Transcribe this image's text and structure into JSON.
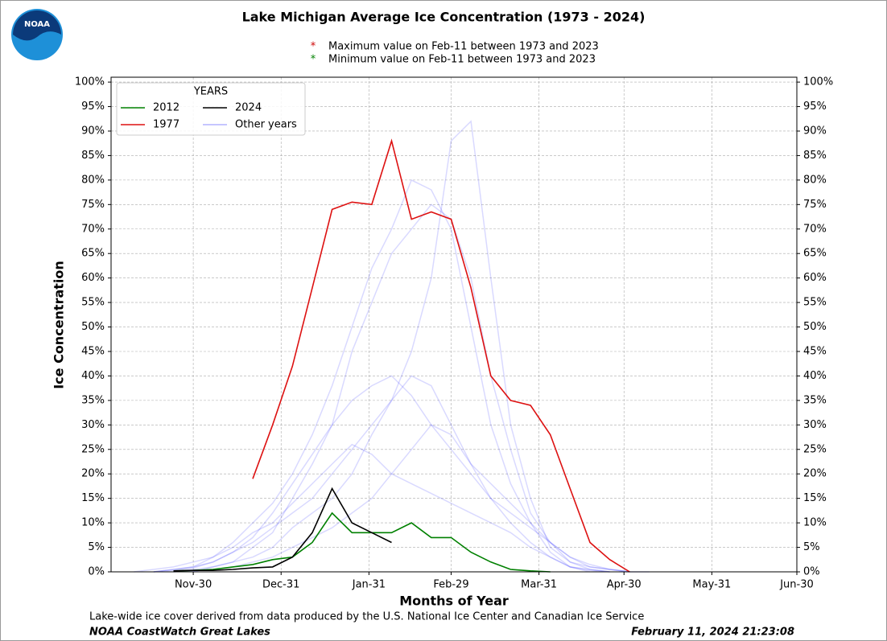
{
  "chart_data": {
    "type": "line",
    "title": "Lake Michigan Average Ice Concentration (1973 - 2024)",
    "annotations": [
      {
        "marker": "*",
        "color": "#cc0000",
        "text": "Maximum value on Feb-11 between 1973 and 2023"
      },
      {
        "marker": "*",
        "color": "#008000",
        "text": "Minimum  value on Feb-11 between 1973 and 2023"
      }
    ],
    "logo_text": "NOAA",
    "x_label": "Months of Year",
    "y_label": "Ice Concentration",
    "footnote": "Lake-wide ice cover derived from data produced by the U.S. National Ice Center and Canadian Ice Service",
    "footer_left": "NOAA CoastWatch Great Lakes",
    "footer_right": "February 11, 2024 21:23:08",
    "legend_title": "YEARS",
    "legend_position": "upper left",
    "grid": true,
    "xlim": [
      "Nov-01",
      "Jun-30"
    ],
    "xticks": [
      "Nov-30",
      "Dec-31",
      "Jan-31",
      "Feb-29",
      "Mar-31",
      "Apr-30",
      "May-31",
      "Jun-30"
    ],
    "ylim": [
      0,
      101
    ],
    "yticks": [
      {
        "value": 0,
        "label": "0%"
      },
      {
        "value": 5,
        "label": "5%"
      },
      {
        "value": 10,
        "label": "10%"
      },
      {
        "value": 15,
        "label": "15%"
      },
      {
        "value": 20,
        "label": "20%"
      },
      {
        "value": 25,
        "label": "25%"
      },
      {
        "value": 30,
        "label": "30%"
      },
      {
        "value": 35,
        "label": "35%"
      },
      {
        "value": 40,
        "label": "40%"
      },
      {
        "value": 45,
        "label": "45%"
      },
      {
        "value": 50,
        "label": "50%"
      },
      {
        "value": 55,
        "label": "55%"
      },
      {
        "value": 60,
        "label": "60%"
      },
      {
        "value": 65,
        "label": "65%"
      },
      {
        "value": 70,
        "label": "70%"
      },
      {
        "value": 75,
        "label": "75%"
      },
      {
        "value": 80,
        "label": "80%"
      },
      {
        "value": 85,
        "label": "85%"
      },
      {
        "value": 90,
        "label": "90%"
      },
      {
        "value": 95,
        "label": "95%"
      },
      {
        "value": 100,
        "label": "100%"
      }
    ],
    "x": [
      "Nov-09",
      "Nov-16",
      "Nov-23",
      "Nov-30",
      "Dec-07",
      "Dec-14",
      "Dec-21",
      "Dec-28",
      "Jan-04",
      "Jan-11",
      "Jan-18",
      "Jan-25",
      "Feb-01",
      "Feb-08",
      "Feb-15",
      "Feb-22",
      "Feb-29",
      "Mar-07",
      "Mar-14",
      "Mar-21",
      "Mar-28",
      "Apr-04",
      "Apr-11",
      "Apr-18",
      "Apr-25",
      "May-02",
      "May-09",
      "May-16"
    ],
    "other_years": {
      "name": "Other years",
      "color": "#0000ff",
      "lines": [
        [
          null,
          0,
          0.5,
          1,
          2,
          4,
          6,
          9,
          12,
          15,
          20,
          25,
          30,
          35,
          40,
          38,
          30,
          22,
          15,
          10,
          6,
          3,
          1,
          0.5,
          0,
          null,
          null,
          null
        ],
        [
          null,
          null,
          0,
          0.5,
          1,
          2,
          5,
          8,
          15,
          22,
          30,
          45,
          55,
          65,
          70,
          75,
          72,
          60,
          40,
          25,
          12,
          6,
          2,
          0.5,
          0,
          null,
          null,
          null
        ],
        [
          0,
          0.5,
          1,
          2,
          3,
          5,
          8,
          10,
          14,
          18,
          22,
          26,
          24,
          20,
          18,
          16,
          14,
          12,
          10,
          8,
          5,
          3,
          1,
          0,
          null,
          null,
          null,
          null
        ],
        [
          null,
          null,
          null,
          0,
          1,
          2,
          3,
          5,
          9,
          12,
          15,
          20,
          28,
          35,
          45,
          60,
          88,
          92,
          60,
          30,
          15,
          5,
          2,
          1,
          0.5,
          0,
          null,
          null
        ],
        [
          null,
          0,
          0.3,
          0.8,
          2,
          4,
          7,
          12,
          18,
          24,
          30,
          35,
          38,
          40,
          36,
          30,
          25,
          20,
          15,
          12,
          9,
          6,
          3,
          1,
          0.5,
          0,
          null,
          null
        ],
        [
          null,
          null,
          0,
          0.2,
          0.5,
          1,
          2,
          3,
          5,
          7,
          9,
          12,
          15,
          20,
          25,
          30,
          28,
          22,
          18,
          14,
          10,
          6,
          3,
          1.5,
          0.5,
          0,
          0,
          null
        ],
        [
          null,
          0,
          0.5,
          1,
          3,
          6,
          10,
          14,
          20,
          28,
          38,
          50,
          62,
          70,
          80,
          78,
          70,
          50,
          30,
          18,
          10,
          4,
          1,
          0.3,
          0,
          null,
          null,
          null
        ]
      ]
    },
    "series": [
      {
        "name": "2012",
        "color": "#008000",
        "values": [
          null,
          null,
          0.2,
          0.3,
          0.5,
          1,
          1.5,
          2.5,
          3,
          6,
          12,
          8,
          8,
          8,
          10,
          7,
          7,
          4,
          2,
          0.5,
          0.2,
          0,
          null,
          null,
          null,
          null,
          null,
          null
        ]
      },
      {
        "name": "1977",
        "color": "#dd1111",
        "values": [
          null,
          null,
          null,
          null,
          null,
          null,
          19,
          30,
          42,
          58,
          74,
          75.5,
          75,
          88,
          72,
          73.5,
          72,
          58,
          40,
          35,
          34,
          28,
          17,
          6,
          2.5,
          0,
          null,
          null
        ]
      },
      {
        "name": "2024",
        "color": "#000000",
        "values": [
          null,
          null,
          0.2,
          0.3,
          0.3,
          0.5,
          0.8,
          1,
          3,
          8,
          17,
          10,
          8,
          6,
          null,
          null,
          null,
          null,
          null,
          null,
          null,
          null,
          null,
          null,
          null,
          null,
          null,
          null
        ]
      }
    ]
  }
}
